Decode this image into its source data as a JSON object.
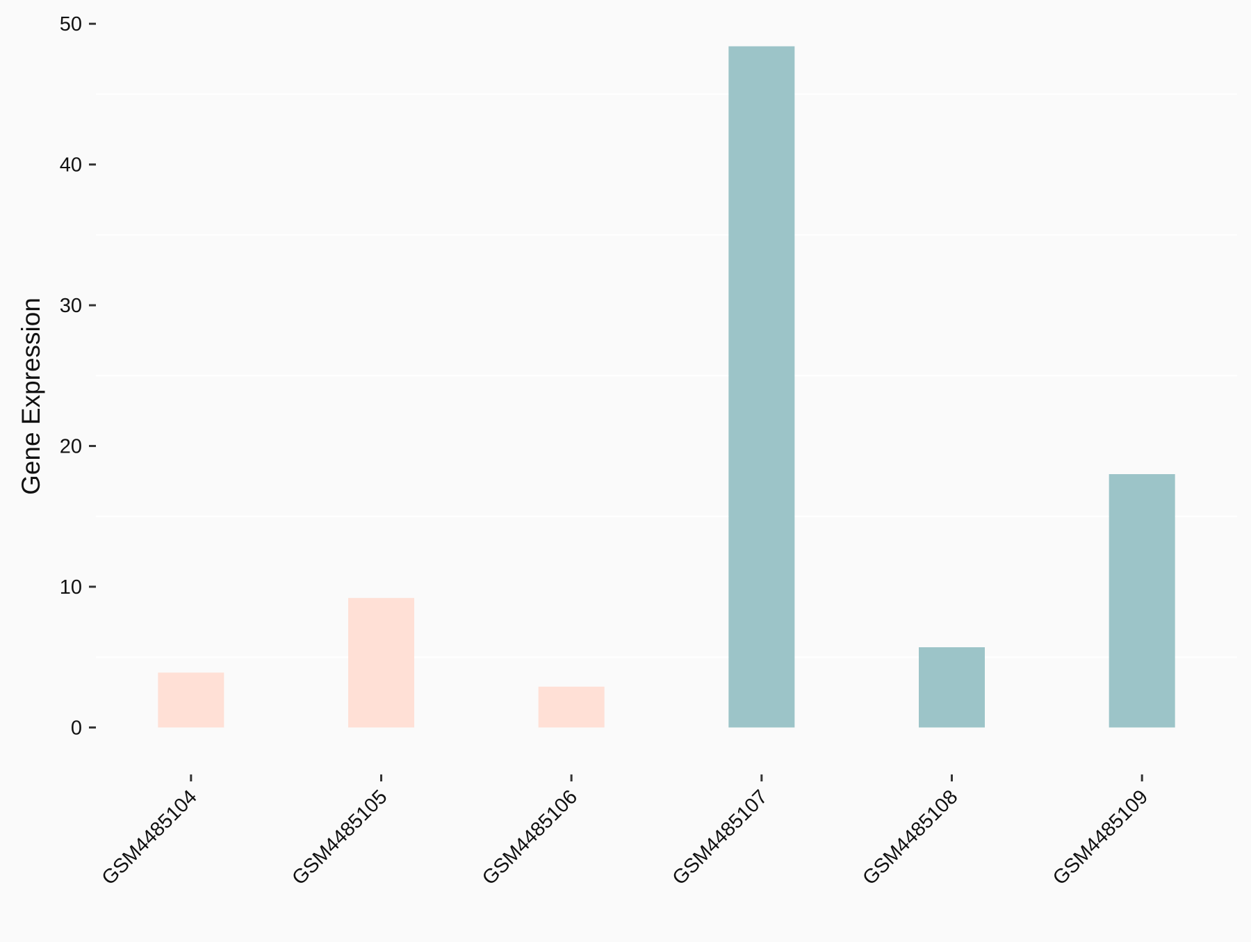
{
  "chart_data": {
    "type": "bar",
    "title": "",
    "xlabel": "",
    "ylabel": "Gene Expression",
    "categories": [
      "GSM4485104",
      "GSM4485105",
      "GSM4485106",
      "GSM4485107",
      "GSM4485108",
      "GSM4485109"
    ],
    "values": [
      3.9,
      9.2,
      2.9,
      48.4,
      5.7,
      18.0
    ],
    "bar_colors": [
      "#ffe0d6",
      "#ffe0d6",
      "#ffe0d6",
      "#9cc4c8",
      "#9cc4c8",
      "#9cc4c8"
    ],
    "ylim": [
      -2.4,
      50.8
    ],
    "yticks": [
      0,
      10,
      20,
      30,
      40,
      50
    ],
    "ytick_labels": [
      "0",
      "10",
      "20",
      "30",
      "40",
      "50"
    ],
    "grid": "minor horizontal",
    "minor_grid": [
      5,
      15,
      25,
      35,
      45
    ],
    "legend": "none",
    "colors": {
      "background": "#fafafa",
      "grid": "#ffffff",
      "text": "#111111",
      "tick": "#333333"
    }
  }
}
